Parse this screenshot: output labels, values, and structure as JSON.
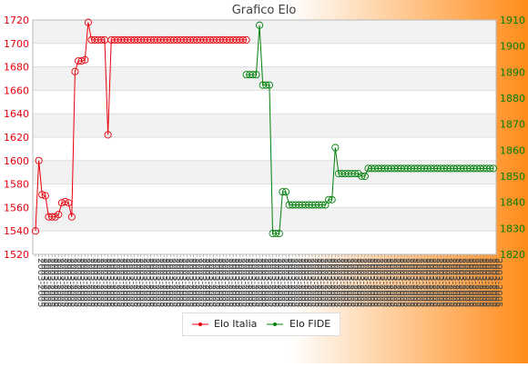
{
  "chart_data": {
    "type": "line",
    "title": "Grafico Elo",
    "y_left": {
      "min": 1520,
      "max": 1720,
      "step": 20
    },
    "y_right": {
      "min": 1820,
      "max": 1910,
      "step": 10
    },
    "x_count": 140,
    "x_tick_label_example": "2003-2005",
    "grid": "horizontal bands",
    "legend_position": "bottom-center",
    "series": [
      {
        "name": "Elo Italia",
        "axis": "left",
        "color": "#e8000b",
        "points": [
          [
            0,
            1540
          ],
          [
            1,
            1600
          ],
          [
            2,
            1571
          ],
          [
            3,
            1570
          ],
          [
            4,
            1552
          ],
          [
            5,
            1552
          ],
          [
            6,
            1552
          ],
          [
            7,
            1554
          ],
          [
            8,
            1564
          ],
          [
            9,
            1565
          ],
          [
            10,
            1564
          ],
          [
            11,
            1552
          ],
          [
            12,
            1676
          ],
          [
            13,
            1685
          ],
          [
            14,
            1685
          ],
          [
            15,
            1686
          ],
          [
            16,
            1718
          ],
          [
            17,
            1703
          ],
          [
            18,
            1703
          ],
          [
            19,
            1703
          ],
          [
            20,
            1703
          ],
          [
            21,
            1703
          ],
          [
            22,
            1622
          ],
          [
            23,
            1703
          ],
          [
            24,
            1703
          ],
          [
            25,
            1703
          ],
          [
            26,
            1703
          ],
          [
            27,
            1703
          ],
          [
            28,
            1703
          ],
          [
            29,
            1703
          ],
          [
            30,
            1703
          ],
          [
            31,
            1703
          ],
          [
            32,
            1703
          ],
          [
            33,
            1703
          ],
          [
            34,
            1703
          ],
          [
            35,
            1703
          ],
          [
            36,
            1703
          ],
          [
            37,
            1703
          ],
          [
            38,
            1703
          ],
          [
            39,
            1703
          ],
          [
            40,
            1703
          ],
          [
            41,
            1703
          ],
          [
            42,
            1703
          ],
          [
            43,
            1703
          ],
          [
            44,
            1703
          ],
          [
            45,
            1703
          ],
          [
            46,
            1703
          ],
          [
            47,
            1703
          ],
          [
            48,
            1703
          ],
          [
            49,
            1703
          ],
          [
            50,
            1703
          ],
          [
            51,
            1703
          ],
          [
            52,
            1703
          ],
          [
            53,
            1703
          ],
          [
            54,
            1703
          ],
          [
            55,
            1703
          ],
          [
            56,
            1703
          ],
          [
            57,
            1703
          ],
          [
            58,
            1703
          ],
          [
            59,
            1703
          ],
          [
            60,
            1703
          ],
          [
            61,
            1703
          ],
          [
            62,
            1703
          ],
          [
            63,
            1703
          ],
          [
            64,
            1703
          ]
        ]
      },
      {
        "name": "Elo FIDE",
        "axis": "right",
        "color": "#00800a",
        "points": [
          [
            64,
            1889
          ],
          [
            65,
            1889
          ],
          [
            66,
            1889
          ],
          [
            67,
            1889
          ],
          [
            68,
            1908
          ],
          [
            69,
            1885
          ],
          [
            70,
            1885
          ],
          [
            71,
            1885
          ],
          [
            72,
            1828
          ],
          [
            73,
            1828
          ],
          [
            74,
            1828
          ],
          [
            75,
            1844
          ],
          [
            76,
            1844
          ],
          [
            77,
            1839
          ],
          [
            78,
            1839
          ],
          [
            79,
            1839
          ],
          [
            80,
            1839
          ],
          [
            81,
            1839
          ],
          [
            82,
            1839
          ],
          [
            83,
            1839
          ],
          [
            84,
            1839
          ],
          [
            85,
            1839
          ],
          [
            86,
            1839
          ],
          [
            87,
            1839
          ],
          [
            88,
            1839
          ],
          [
            89,
            1841
          ],
          [
            90,
            1841
          ],
          [
            91,
            1861
          ],
          [
            92,
            1851
          ],
          [
            93,
            1851
          ],
          [
            94,
            1851
          ],
          [
            95,
            1851
          ],
          [
            96,
            1851
          ],
          [
            97,
            1851
          ],
          [
            98,
            1851
          ],
          [
            99,
            1850
          ],
          [
            100,
            1850
          ],
          [
            101,
            1853
          ],
          [
            102,
            1853
          ],
          [
            103,
            1853
          ],
          [
            104,
            1853
          ],
          [
            105,
            1853
          ],
          [
            106,
            1853
          ],
          [
            107,
            1853
          ],
          [
            108,
            1853
          ],
          [
            109,
            1853
          ],
          [
            110,
            1853
          ],
          [
            111,
            1853
          ],
          [
            112,
            1853
          ],
          [
            113,
            1853
          ],
          [
            114,
            1853
          ],
          [
            115,
            1853
          ],
          [
            116,
            1853
          ],
          [
            117,
            1853
          ],
          [
            118,
            1853
          ],
          [
            119,
            1853
          ],
          [
            120,
            1853
          ],
          [
            121,
            1853
          ],
          [
            122,
            1853
          ],
          [
            123,
            1853
          ],
          [
            124,
            1853
          ],
          [
            125,
            1853
          ],
          [
            126,
            1853
          ],
          [
            127,
            1853
          ],
          [
            128,
            1853
          ],
          [
            129,
            1853
          ],
          [
            130,
            1853
          ],
          [
            131,
            1853
          ],
          [
            132,
            1853
          ],
          [
            133,
            1853
          ],
          [
            134,
            1853
          ],
          [
            135,
            1853
          ],
          [
            136,
            1853
          ],
          [
            137,
            1853
          ],
          [
            138,
            1853
          ],
          [
            139,
            1853
          ]
        ]
      }
    ]
  }
}
